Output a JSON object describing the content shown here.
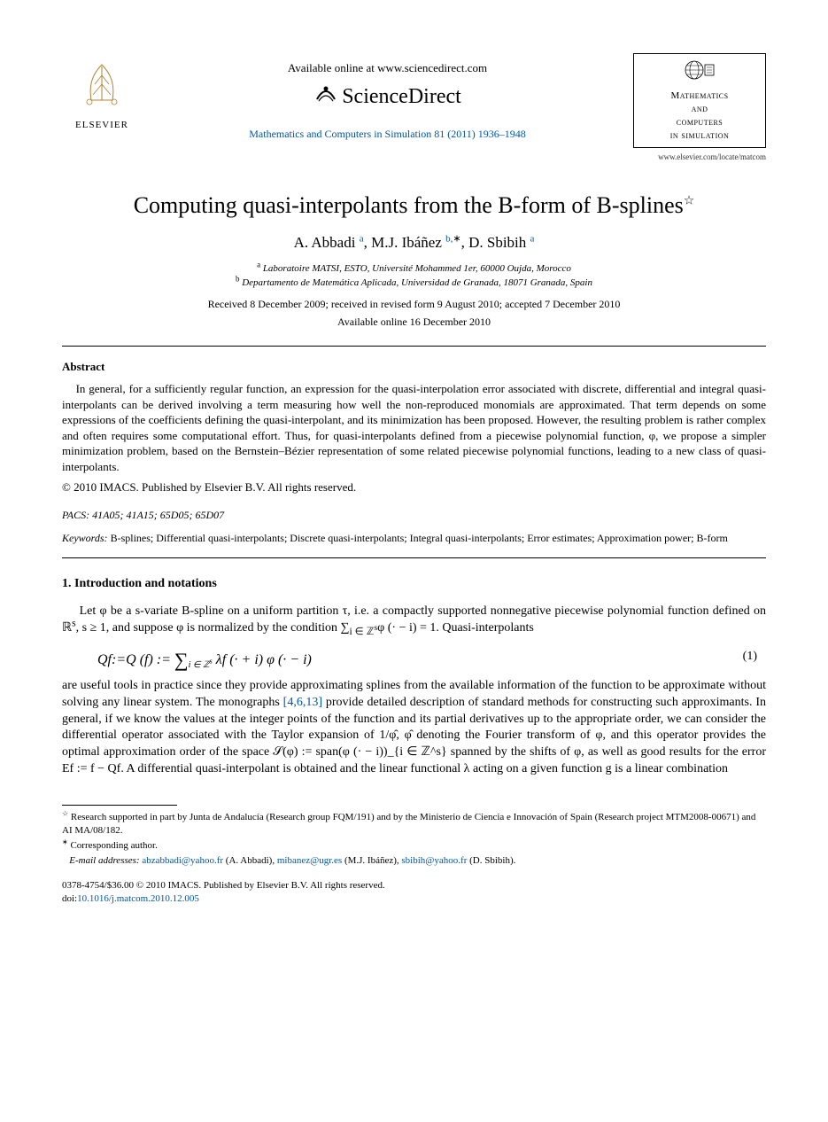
{
  "header": {
    "elsevier_label": "ELSEVIER",
    "available_online": "Available online at www.sciencedirect.com",
    "sciencedirect": "ScienceDirect",
    "journal_ref": "Mathematics and Computers in Simulation 81 (2011) 1936–1948",
    "journal_box": {
      "line1": "Mathematics",
      "line2": "and",
      "line3": "computers",
      "line4": "in simulation"
    },
    "locate": "www.elsevier.com/locate/matcom"
  },
  "title": "Computing quasi-interpolants from the B-form of B-splines",
  "title_star": "☆",
  "authors_html": "A. Abbadi <sup>a</sup>, M.J. Ibáñez <sup>b,</sup><sup class=\"ast\">∗</sup>, D. Sbibih <sup>a</sup>",
  "affiliations": {
    "a": "Laboratoire MATSI, ESTO, Université Mohammed 1er, 60000 Oujda, Morocco",
    "b": "Departamento de Matemática Aplicada, Universidad de Granada, 18071 Granada, Spain"
  },
  "dates": "Received 8 December 2009; received in revised form 9 August 2010; accepted 7 December 2010",
  "dates2": "Available online 16 December 2010",
  "abstract": {
    "heading": "Abstract",
    "body": "In general, for a sufficiently regular function, an expression for the quasi-interpolation error associated with discrete, differential and integral quasi-interpolants can be derived involving a term measuring how well the non-reproduced monomials are approximated. That term depends on some expressions of the coefficients defining the quasi-interpolant, and its minimization has been proposed. However, the resulting problem is rather complex and often requires some computational effort. Thus, for quasi-interpolants defined from a piecewise polynomial function, φ, we propose a simpler minimization problem, based on the Bernstein–Bézier representation of some related piecewise polynomial functions, leading to a new class of quasi-interpolants.",
    "copyright": "© 2010 IMACS. Published by Elsevier B.V. All rights reserved."
  },
  "pacs": {
    "label": "PACS:",
    "value": "41A05; 41A15; 65D05; 65D07"
  },
  "keywords": {
    "label": "Keywords:",
    "value": "B-splines; Differential quasi-interpolants; Discrete quasi-interpolants; Integral quasi-interpolants; Error estimates; Approximation power; B-form"
  },
  "section1": {
    "heading": "1.  Introduction and notations",
    "para1_pre": "Let φ be a s-variate B-spline on a uniform partition τ, i.e. a compactly supported nonnegative piecewise polynomial function defined on ℝ",
    "para1_sup": "s",
    "para1_post": ", s ≥ 1, and suppose φ is normalized by the condition ∑",
    "para1_sub": "i ∈ ℤ",
    "para1_subs": "s",
    "para1_end": "φ (· − i) = 1. Quasi-interpolants",
    "equation": "Qf := Q (f) := ∑_{i ∈ ℤ^s} λf (· + i) φ (· − i)",
    "eqnum": "(1)",
    "para2": "are useful tools in practice since they provide approximating splines from the available information of the function to be approximate without solving any linear system. The monographs ",
    "para2_refs": "[4,6,13]",
    "para2_cont": " provide detailed description of standard methods for constructing such approximants. In general, if we know the values at the integer points of the function and its partial derivatives up to the appropriate order, we can consider the differential operator associated with the Taylor expansion of 1/φ̂, φ̂ denoting the Fourier transform of φ, and this operator provides the optimal approximation order of the space 𝒮(φ) := span(φ (· − i))_{i ∈ ℤ^s} spanned by the shifts of φ, as well as good results for the error Ef := f − Qf. A differential quasi-interpolant is obtained and the linear functional λ acting on a given function g is a linear combination"
  },
  "footnotes": {
    "funding_sym": "☆",
    "funding": "Research supported in part by Junta de Andalucía (Research group FQM/191) and by the Ministerio de Ciencia e Innovación of Spain (Research project MTM2008-00671) and AI MA/08/182.",
    "corr_sym": "∗",
    "corr": "Corresponding author.",
    "email_label": "E-mail addresses:",
    "emails": [
      {
        "addr": "abzabbadi@yahoo.fr",
        "who": "(A. Abbadi)"
      },
      {
        "addr": "mibanez@ugr.es",
        "who": "(M.J. Ibáñez)"
      },
      {
        "addr": "sbibih@yahoo.fr",
        "who": "(D. Sbibih)"
      }
    ]
  },
  "footer": {
    "line1": "0378-4754/$36.00 © 2010 IMACS. Published by Elsevier B.V. All rights reserved.",
    "doi_label": "doi:",
    "doi": "10.1016/j.matcom.2010.12.005"
  },
  "colors": {
    "link": "#0056a8",
    "text": "#000000",
    "bg": "#ffffff"
  }
}
